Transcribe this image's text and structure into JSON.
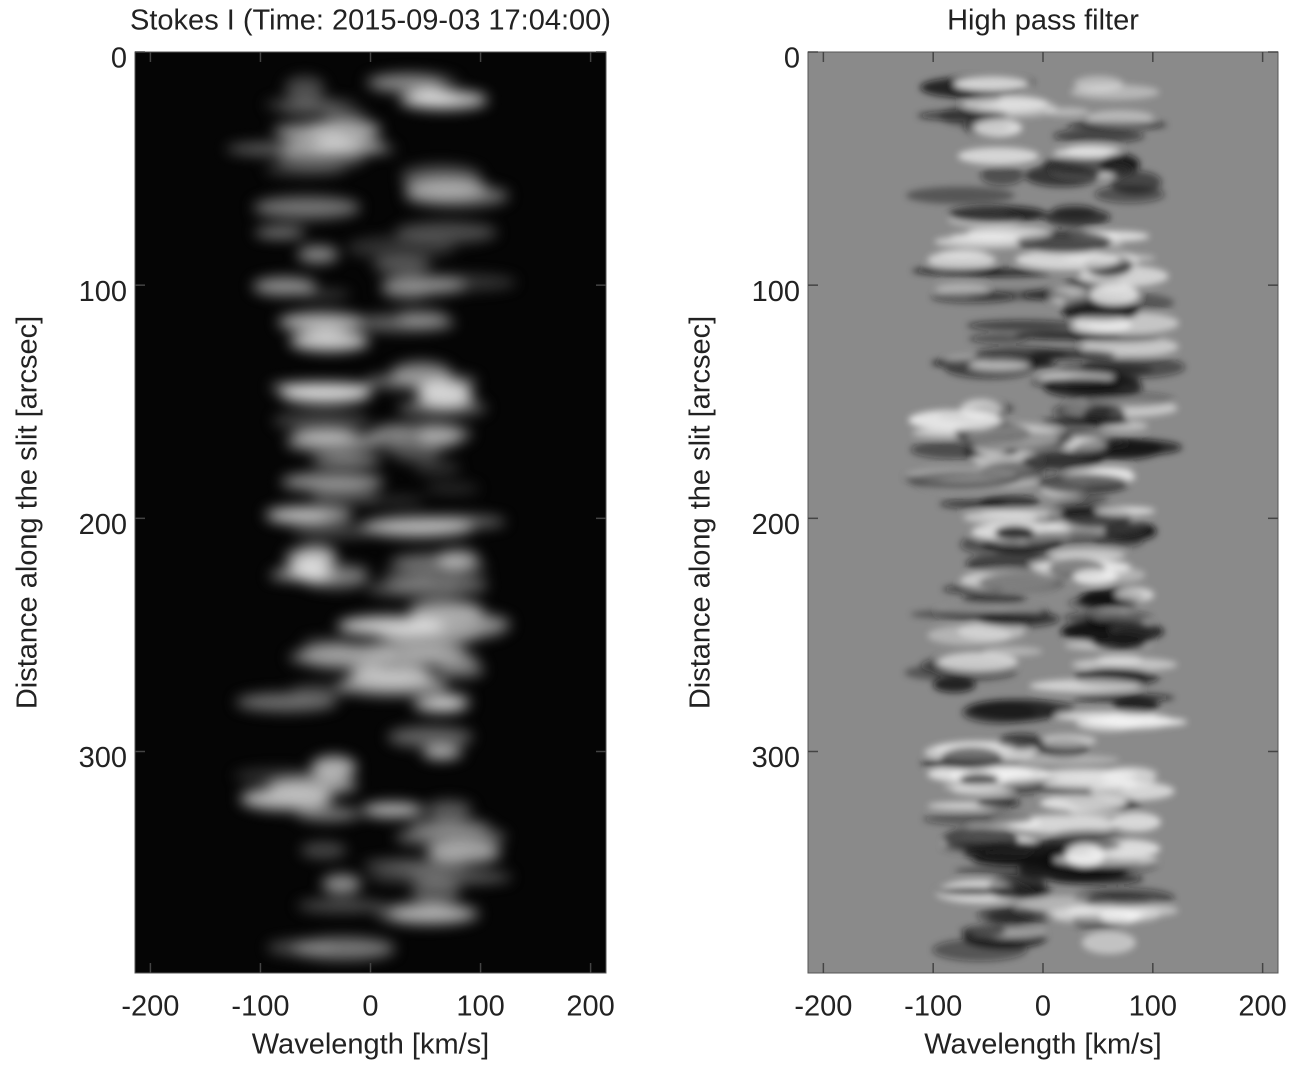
{
  "chart_data": [
    {
      "type": "image",
      "title": "Stokes I (Time: 2015-09-03 17:04:00)",
      "xlabel": "Wavelength [km/s]",
      "ylabel": "Distance along the slit [arcsec]",
      "xlim": [
        -214,
        214
      ],
      "xticks": [
        -200,
        -100,
        0,
        100,
        200
      ],
      "ylim": [
        0,
        395
      ],
      "invert_y": true,
      "yticks": [
        0,
        100,
        200,
        300
      ],
      "colormap": "gray"
    },
    {
      "type": "image",
      "title": "High pass filter",
      "xlabel": "Wavelength [km/s]",
      "ylabel": "Distance along the slit [arcsec]",
      "xlim": [
        -214,
        214
      ],
      "xticks": [
        -200,
        -100,
        0,
        100,
        200
      ],
      "ylim": [
        0,
        395
      ],
      "invert_y": true,
      "yticks": [
        0,
        100,
        200,
        300
      ],
      "colormap": "gray-diverging"
    }
  ]
}
